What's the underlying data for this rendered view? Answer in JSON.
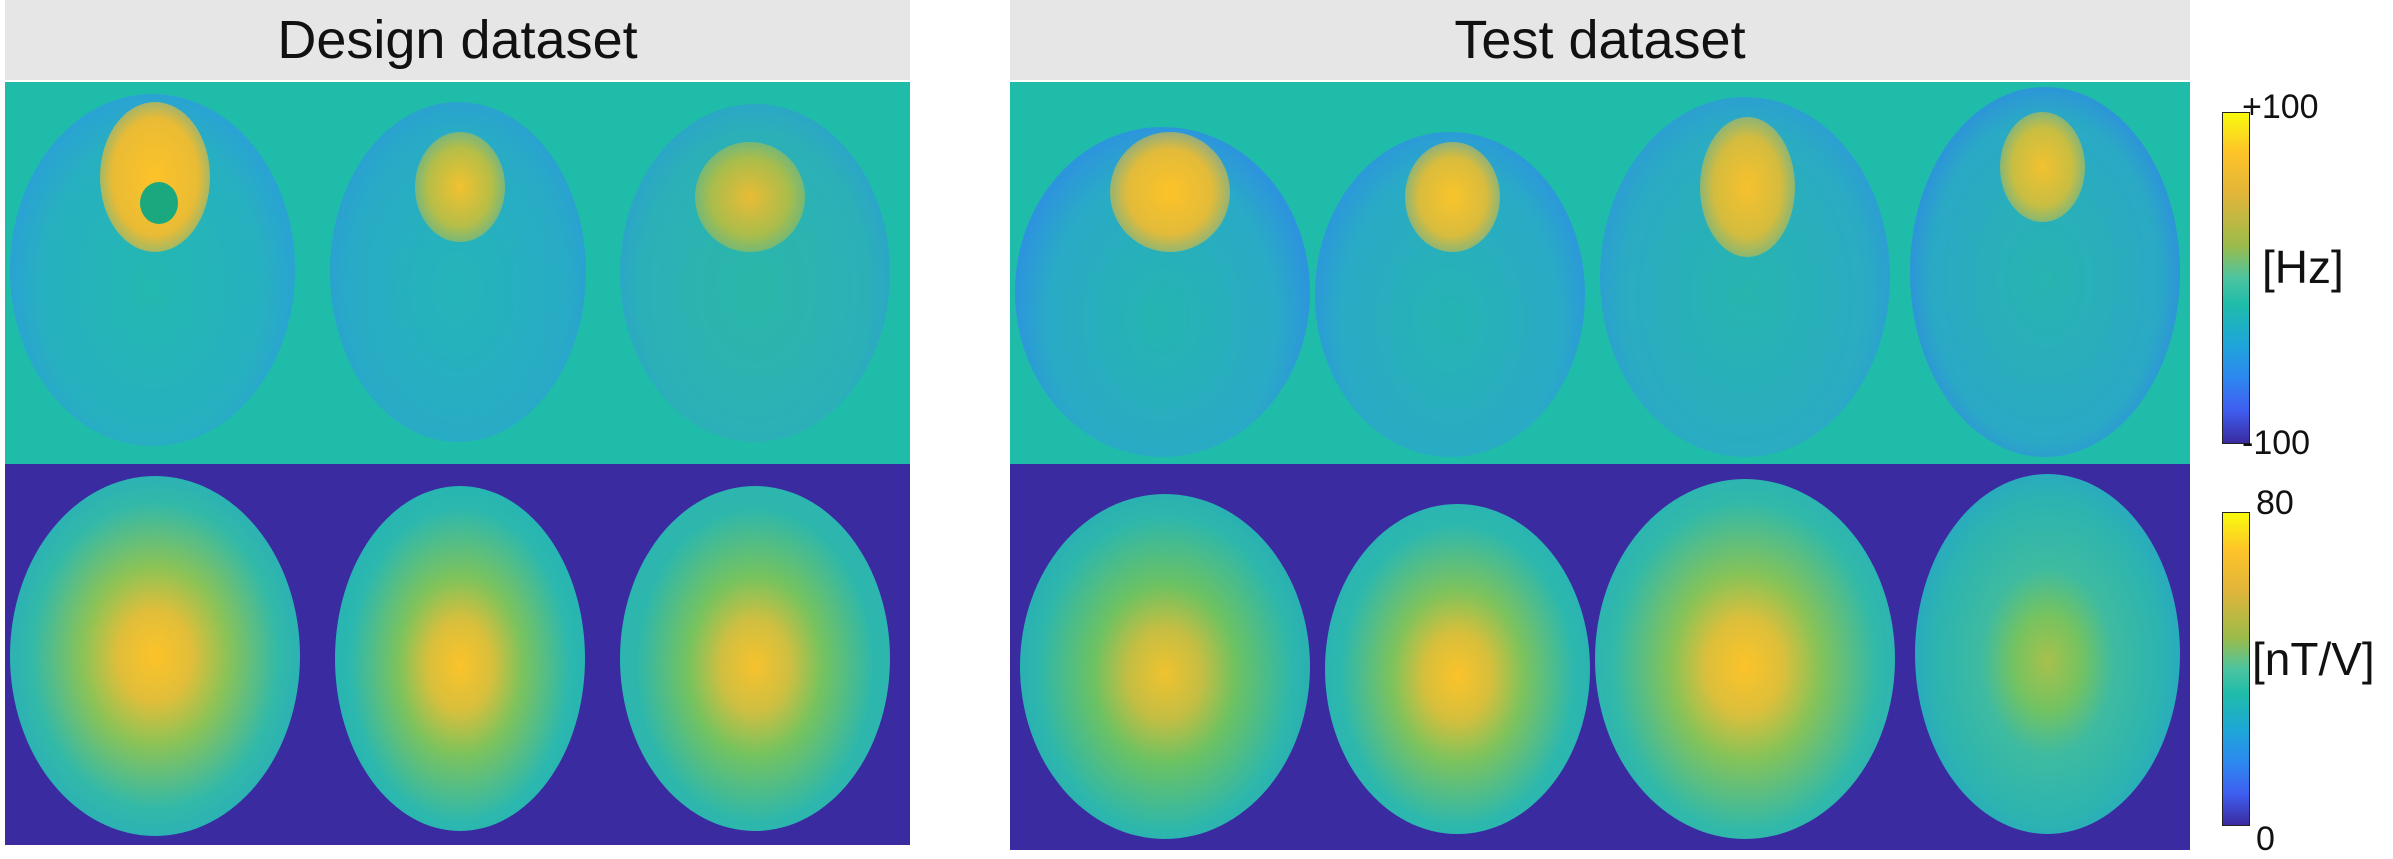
{
  "panels": [
    {
      "title": "Design dataset",
      "slices": 3
    },
    {
      "title": "Test dataset",
      "slices": 4
    }
  ],
  "colorbars": [
    {
      "max_label": "+100",
      "min_label": "-100",
      "unit": "[Hz]"
    },
    {
      "max_label": "80",
      "min_label": "0",
      "unit": "[nT/V]"
    }
  ],
  "colors": {
    "b0_background": "#1fbcaa",
    "b1_background": "#3a2ba0",
    "header_background": "#e6e6e6"
  }
}
